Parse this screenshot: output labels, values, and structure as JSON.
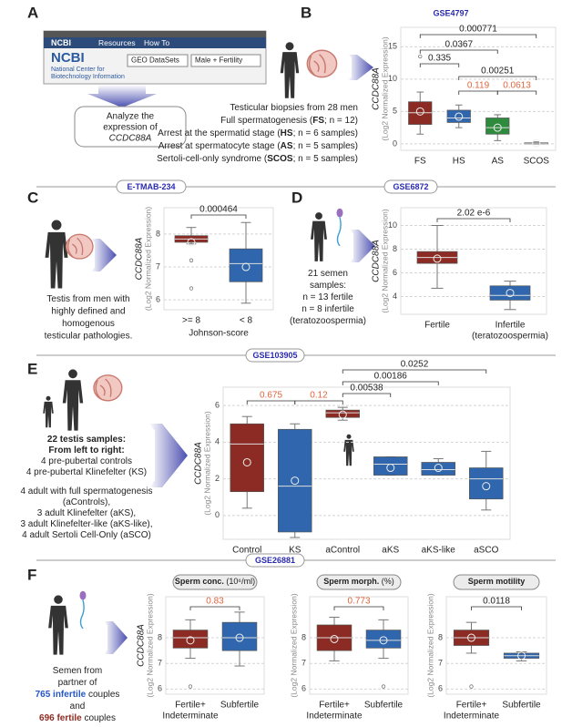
{
  "panel_a": {
    "letter": "A",
    "ncbi": {
      "logo": "NCBI",
      "menu": [
        "Resources",
        "How To"
      ],
      "org": [
        "National Center for",
        "Biotechnology Information"
      ],
      "database": "GEO DataSets",
      "query": "Male + Fertility"
    },
    "caption": [
      "Analyze the",
      "expression of",
      "CCDC88A"
    ]
  },
  "panel_b": {
    "letter": "B",
    "dataset": "GSE4797",
    "lines": [
      [
        {
          "t": "Testicular biopsies from 28 men"
        }
      ],
      [
        {
          "t": "Full spermatogenesis ("
        },
        {
          "t": "FS",
          "b": true
        },
        {
          "t": "; n = 12)"
        }
      ],
      [
        {
          "t": "Arrest at the spermatid stage ("
        },
        {
          "t": "HS",
          "b": true
        },
        {
          "t": "; n = 6 samples)"
        }
      ],
      [
        {
          "t": "Arrest at spermatocyte stage ("
        },
        {
          "t": "AS",
          "b": true
        },
        {
          "t": "; n = 5 samples)"
        }
      ],
      [
        {
          "t": "Sertoli-cell-only syndrome ("
        },
        {
          "t": "SCOS",
          "b": true
        },
        {
          "t": "; n = 5 samples)"
        }
      ]
    ]
  },
  "panel_c": {
    "letter": "C",
    "dataset": "E-TMAB-234",
    "lines": [
      [
        {
          "t": "Testis from men with"
        }
      ],
      [
        {
          "t": "highly defined and"
        }
      ],
      [
        {
          "t": "homogenous"
        }
      ],
      [
        {
          "t": "testicular pathologies."
        }
      ]
    ]
  },
  "panel_d": {
    "letter": "D",
    "dataset": "GSE6872",
    "lines": [
      [
        {
          "t": "21 semen"
        }
      ],
      [
        {
          "t": "samples:"
        }
      ],
      [
        {
          "t": "n = 13 fertile"
        }
      ],
      [
        {
          "t": "n = 8 infertile"
        }
      ],
      [
        {
          "t": "(teratozoospermia)"
        }
      ]
    ]
  },
  "panel_e": {
    "letter": "E",
    "dataset": "GSE103905",
    "lines": [
      [
        {
          "t": "22 testis samples:",
          "b": true
        }
      ],
      [
        {
          "t": "From left to right:",
          "b": true
        }
      ],
      [
        {
          "t": "4 pre-pubertal controls"
        }
      ],
      [
        {
          "t": "4 pre-pubertal Klinefelter (KS)"
        }
      ],
      [
        {
          "t": "4 adult with full spermatogenesis"
        }
      ],
      [
        {
          "t": "(aControls),"
        }
      ],
      [
        {
          "t": "3 adult Klinefelter (aKS),"
        }
      ],
      [
        {
          "t": "3 adult Klinefelter-like (aKS-like),"
        }
      ],
      [
        {
          "t": "4 adult Sertoli Cell-Only (aSCO)"
        }
      ]
    ]
  },
  "panel_f": {
    "letter": "F",
    "dataset": "GSE26881",
    "lines": [
      [
        {
          "t": "Semen from"
        }
      ],
      [
        {
          "t": "partner of"
        }
      ],
      [
        {
          "t": "765 infertile",
          "b": true,
          "c": "#2456c8"
        },
        {
          "t": " couples"
        }
      ],
      [
        {
          "t": "and"
        }
      ],
      [
        {
          "t": "696 fertile",
          "b": true,
          "c": "#8e2b22"
        },
        {
          "t": " couples"
        }
      ]
    ]
  },
  "chart_data": [
    {
      "type": "box",
      "ylabel": "CCDC88A",
      "ylabel_sub": "(Log2 Normalized Expression)",
      "categories": [
        "FS",
        "HS",
        "AS",
        "SCOS"
      ],
      "boxes": [
        {
          "whislo": 1.5,
          "q1": 3,
          "med": 4.8,
          "q3": 6.5,
          "whishi": 8,
          "mean": 5,
          "fliers": [
            13.5
          ]
        },
        {
          "whislo": 2.5,
          "q1": 3.3,
          "med": 4,
          "q3": 5.2,
          "whishi": 6,
          "mean": 4.2,
          "fliers": []
        },
        {
          "whislo": 0.5,
          "q1": 1.5,
          "med": 2.5,
          "q3": 4,
          "whishi": 4.5,
          "mean": 2.5,
          "fliers": []
        },
        {
          "whislo": 0,
          "q1": 0,
          "med": 0.1,
          "q3": 0.2,
          "whishi": 0.3,
          "mean": 0.1,
          "fliers": []
        }
      ],
      "colors": [
        "#8b2b23",
        "#2f66ad",
        "#2e8b3e",
        "#9a9a9a"
      ],
      "ylim": [
        -1,
        18
      ],
      "yticks": [
        0,
        5,
        10,
        15
      ],
      "grid": true,
      "comparisons": [
        {
          "pair": [
            0,
            3
          ],
          "label": "0.000771",
          "color": "#222222"
        },
        {
          "pair": [
            0,
            2
          ],
          "label": "0.0367",
          "color": "#222222"
        },
        {
          "pair": [
            0,
            1
          ],
          "label": "0.335",
          "color": "#222222"
        },
        {
          "pair": [
            1,
            3
          ],
          "label": "0.00251",
          "color": "#222222"
        },
        {
          "pair": [
            1,
            2
          ],
          "label": "0.119",
          "color": "#e0653e"
        },
        {
          "pair": [
            2,
            3
          ],
          "label": "0.0613",
          "color": "#e0653e"
        }
      ]
    },
    {
      "type": "box",
      "ylabel": "CCDC88A",
      "ylabel_sub": "(Log2 Normalized Expression)",
      "categories": [
        ">= 8",
        "< 8"
      ],
      "xlabel": "Johnson-score",
      "boxes": [
        {
          "whislo": 7.7,
          "q1": 7.75,
          "med": 7.85,
          "q3": 7.95,
          "whishi": 8.2,
          "mean": 7.75,
          "fliers": [
            7.2,
            6.35
          ]
        },
        {
          "whislo": 5.9,
          "q1": 6.55,
          "med": 7.1,
          "q3": 7.55,
          "whishi": 8.35,
          "mean": 7.0,
          "fliers": []
        }
      ],
      "colors": [
        "#8b2b23",
        "#2f66ad"
      ],
      "ylim": [
        5.7,
        8.8
      ],
      "yticks": [
        6,
        7,
        8
      ],
      "grid": true,
      "comparisons": [
        {
          "pair": [
            0,
            1
          ],
          "label": "0.000464",
          "color": "#222222"
        }
      ]
    },
    {
      "type": "box",
      "ylabel": "CCDC88A",
      "ylabel_sub": "(Log2 Normalized Expression)",
      "categories": [
        "Fertile",
        [
          "Infertile",
          "(teratozoospermia)"
        ]
      ],
      "boxes": [
        {
          "whislo": 4.7,
          "q1": 6.8,
          "med": 7.3,
          "q3": 7.8,
          "whishi": 10,
          "mean": 7.2,
          "fliers": []
        },
        {
          "whislo": 2.9,
          "q1": 3.7,
          "med": 4.1,
          "q3": 4.9,
          "whishi": 5.3,
          "mean": 4.3,
          "fliers": []
        }
      ],
      "colors": [
        "#8b2b23",
        "#2f66ad"
      ],
      "ylim": [
        2.5,
        11.5
      ],
      "yticks": [
        4,
        6,
        8,
        10
      ],
      "grid": true,
      "comparisons": [
        {
          "pair": [
            0,
            1
          ],
          "label": "2.02 e-6",
          "color": "#222222"
        }
      ]
    },
    {
      "type": "box",
      "ylabel": "CCDC88A",
      "ylabel_sub": "(Log2 Normalized Expression)",
      "categories": [
        "Control",
        "KS",
        "aControl",
        "aKS",
        "aKS-like",
        "aSCO"
      ],
      "boxes": [
        {
          "whislo": 0.4,
          "q1": 1.3,
          "med": 3.9,
          "q3": 5.0,
          "whishi": 5.4,
          "mean": 2.9,
          "fliers": []
        },
        {
          "whislo": -1.2,
          "q1": -0.9,
          "med": 1.6,
          "q3": 4.7,
          "whishi": 5.0,
          "mean": 1.9,
          "fliers": []
        },
        {
          "whislo": 5.2,
          "q1": 5.35,
          "med": 5.6,
          "q3": 5.75,
          "whishi": 5.9,
          "mean": 5.5,
          "fliers": []
        },
        {
          "whislo": 2.2,
          "q1": 2.2,
          "med": 2.8,
          "q3": 3.2,
          "whishi": 3.2,
          "mean": 2.6,
          "fliers": []
        },
        {
          "whislo": 2.2,
          "q1": 2.2,
          "med": 2.5,
          "q3": 2.9,
          "whishi": 3.1,
          "mean": 2.6,
          "fliers": []
        },
        {
          "whislo": 0.3,
          "q1": 0.9,
          "med": 2.0,
          "q3": 2.6,
          "whishi": 3.5,
          "mean": 1.6,
          "fliers": []
        }
      ],
      "colors": [
        "#8b2b23",
        "#2f66ad",
        "#8b2b23",
        "#2f66ad",
        "#2f66ad",
        "#2f66ad"
      ],
      "ylim": [
        -1.3,
        7
      ],
      "yticks": [
        0,
        2,
        4,
        6
      ],
      "grid": true,
      "comparisons": [
        {
          "pair": [
            2,
            5
          ],
          "label": "0.0252",
          "color": "#222222"
        },
        {
          "pair": [
            2,
            4
          ],
          "label": "0.00186",
          "color": "#222222"
        },
        {
          "pair": [
            2,
            3
          ],
          "label": "0.00538",
          "color": "#222222"
        },
        {
          "pair": [
            0,
            1
          ],
          "label": "0.675",
          "color": "#e0653e"
        },
        {
          "pair": [
            1,
            2
          ],
          "label": "0.12",
          "color": "#e0653e"
        }
      ]
    },
    {
      "type": "box",
      "title": "Sperm conc.",
      "title_unit": "(10⁶/ml)",
      "ylabel": "CCDC88A",
      "ylabel_sub": "(Log2 Normalized Expression)",
      "categories": [
        [
          "Fertile+",
          "Indeterminate"
        ],
        "Subfertile"
      ],
      "boxes": [
        {
          "whislo": 7.2,
          "q1": 7.6,
          "med": 8.0,
          "q3": 8.3,
          "whishi": 8.7,
          "mean": 7.9,
          "fliers": [
            6.1
          ]
        },
        {
          "whislo": 6.9,
          "q1": 7.5,
          "med": 8.0,
          "q3": 8.6,
          "whishi": 9.0,
          "mean": 8.0,
          "fliers": []
        }
      ],
      "colors": [
        "#8b2b23",
        "#2f66ad"
      ],
      "ylim": [
        5.8,
        9.6
      ],
      "yticks": [
        6,
        7,
        8
      ],
      "grid": true,
      "comparisons": [
        {
          "pair": [
            0,
            1
          ],
          "label": "0.83",
          "color": "#e0653e"
        }
      ]
    },
    {
      "type": "box",
      "title": "Sperm morph.",
      "title_unit": "(%)",
      "ylabel_sub": "(Log2 Normalized Expression)",
      "categories": [
        [
          "Fertile+",
          "Indeterminate"
        ],
        "Subfertile"
      ],
      "boxes": [
        {
          "whislo": 7.1,
          "q1": 7.5,
          "med": 8.0,
          "q3": 8.5,
          "whishi": 8.8,
          "mean": 7.95,
          "fliers": []
        },
        {
          "whislo": 7.2,
          "q1": 7.6,
          "med": 7.9,
          "q3": 8.3,
          "whishi": 8.7,
          "mean": 7.9,
          "fliers": [
            6.1
          ]
        }
      ],
      "colors": [
        "#8b2b23",
        "#2f66ad"
      ],
      "ylim": [
        5.8,
        9.6
      ],
      "yticks": [
        6,
        7,
        8
      ],
      "grid": true,
      "comparisons": [
        {
          "pair": [
            0,
            1
          ],
          "label": "0.773",
          "color": "#e0653e"
        }
      ]
    },
    {
      "type": "box",
      "title": "Sperm motility",
      "ylabel_sub": "(Log2 Normalized Expression)",
      "categories": [
        [
          "Fertile+",
          "Indeterminate"
        ],
        "Subfertile"
      ],
      "boxes": [
        {
          "whislo": 7.4,
          "q1": 7.7,
          "med": 8.0,
          "q3": 8.3,
          "whishi": 8.6,
          "mean": 8.0,
          "fliers": [
            6.1
          ]
        },
        {
          "whislo": 7.1,
          "q1": 7.2,
          "med": 7.3,
          "q3": 7.4,
          "whishi": 7.45,
          "mean": 7.3,
          "fliers": []
        }
      ],
      "colors": [
        "#8b2b23",
        "#2f66ad"
      ],
      "ylim": [
        5.8,
        9.6
      ],
      "yticks": [
        6,
        7,
        8
      ],
      "grid": true,
      "comparisons": [
        {
          "pair": [
            0,
            1
          ],
          "label": "0.0118",
          "color": "#222222"
        }
      ]
    }
  ]
}
